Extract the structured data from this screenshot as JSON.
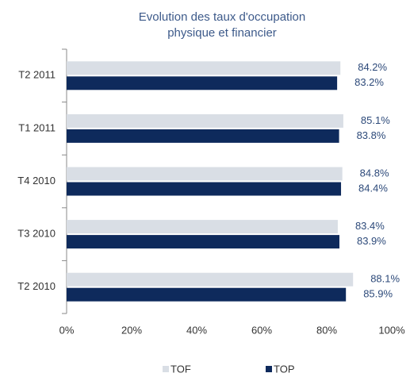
{
  "chart_data": {
    "type": "barh",
    "title": [
      "Evolution des taux d'occupation",
      "physique et financier"
    ],
    "categories": [
      "T2 2011",
      "T1 2011",
      "T4 2010",
      "T3 2010",
      "T2 2010"
    ],
    "series": [
      {
        "name": "TOF",
        "color": "#d9dee5",
        "values": [
          84.2,
          85.1,
          84.8,
          83.4,
          88.1
        ],
        "value_labels": [
          "84.2%",
          "85.1%",
          "84.8%",
          "83.4%",
          "88.1%"
        ]
      },
      {
        "name": "TOP",
        "color": "#0e2a5c",
        "values": [
          83.2,
          83.8,
          84.4,
          83.9,
          85.9
        ],
        "value_labels": [
          "83.2%",
          "83.8%",
          "84.4%",
          "83.9%",
          "85.9%"
        ]
      }
    ],
    "xlim": [
      0,
      100
    ],
    "xticks": [
      {
        "value": 0,
        "label": "0%"
      },
      {
        "value": 20,
        "label": "20%"
      },
      {
        "value": 40,
        "label": "40%"
      },
      {
        "value": 60,
        "label": "60%"
      },
      {
        "value": 80,
        "label": "80%"
      },
      {
        "value": 100,
        "label": "100%"
      }
    ],
    "legend": "bottom"
  }
}
